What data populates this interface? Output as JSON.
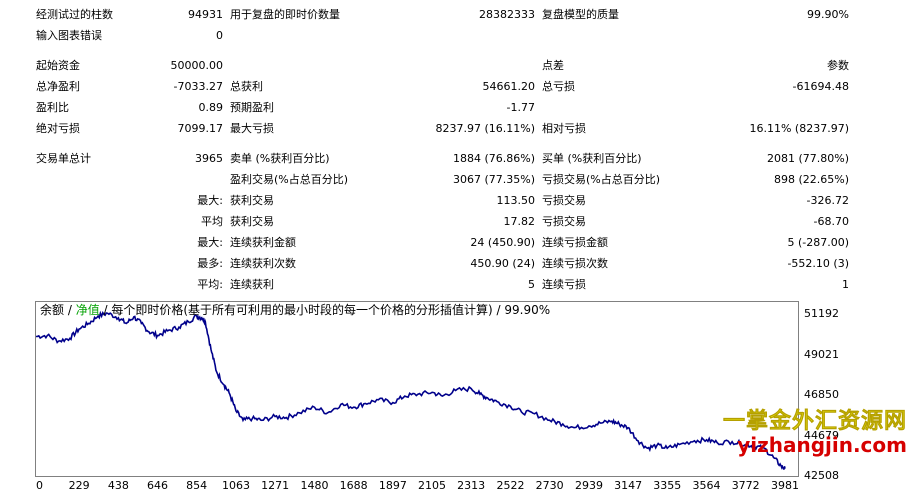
{
  "summary": {
    "bars_tested_label": "经测试过的柱数",
    "bars_tested_value": "94931",
    "ticks_label": "用于复盘的即时价数量",
    "ticks_value": "28382333",
    "model_quality_label": "复盘模型的质量",
    "model_quality_value": "99.90%",
    "mismatch_label": "输入图表错误",
    "mismatch_value": "0",
    "initial_deposit_label": "起始资金",
    "initial_deposit_value": "50000.00",
    "spread_label": "点差",
    "spread_value": "参数",
    "net_profit_label": "总净盈利",
    "net_profit_value": "-7033.27",
    "gross_profit_label": "总获利",
    "gross_profit_value": "54661.20",
    "gross_loss_label": "总亏损",
    "gross_loss_value": "-61694.48",
    "profit_factor_label": "盈利比",
    "profit_factor_value": "0.89",
    "expected_payoff_label": "预期盈利",
    "expected_payoff_value": "-1.77",
    "absolute_dd_label": "绝对亏损",
    "absolute_dd_value": "7099.17",
    "maximal_dd_label": "最大亏损",
    "maximal_dd_value": "8237.97 (16.11%)",
    "relative_dd_label": "相对亏损",
    "relative_dd_value": "16.11% (8237.97)",
    "total_trades_label": "交易单总计",
    "total_trades_value": "3965",
    "short_label": "卖单 (%获利百分比)",
    "short_value": "1884 (76.86%)",
    "long_label": "买单 (%获利百分比)",
    "long_value": "2081 (77.80%)",
    "profit_trades_label": "盈利交易(%占总百分比)",
    "profit_trades_value": "3067 (77.35%)",
    "loss_trades_label": "亏损交易(%占总百分比)",
    "loss_trades_value": "898 (22.65%)",
    "largest_prefix": "最大:",
    "largest_profit_label": "获利交易",
    "largest_profit_value": "113.50",
    "largest_loss_label": "亏损交易",
    "largest_loss_value": "-326.72",
    "average_prefix": "平均",
    "average_profit_label": "获利交易",
    "average_profit_value": "17.82",
    "average_loss_label": "亏损交易",
    "average_loss_value": "-68.70",
    "max_consec_prefix": "最大:",
    "max_consec_wins_label": "连续获利金额",
    "max_consec_wins_value": "24 (450.90)",
    "max_consec_losses_label": "连续亏损金额",
    "max_consec_losses_value": "5 (-287.00)",
    "maximal_consec_prefix": "最多:",
    "maximal_consec_profit_label": "连续获利次数",
    "maximal_consec_profit_value": "450.90 (24)",
    "maximal_consec_loss_label": "连续亏损次数",
    "maximal_consec_loss_value": "-552.10 (3)",
    "avg_consec_prefix": "平均:",
    "avg_consec_wins_label": "连续获利",
    "avg_consec_wins_value": "5",
    "avg_consec_losses_label": "连续亏损",
    "avg_consec_losses_value": "1"
  },
  "legend": {
    "balance": "余额",
    "sep1": " / ",
    "equity": "净值",
    "sep2": " / ",
    "description": "每个即时价格(基于所有可利用的最小时段的每一个价格的分形插值计算) / 99.90%"
  },
  "watermark": {
    "line1": "一掌金外汇资源网",
    "line2": "yizhangjin.com"
  },
  "colors": {
    "balance_line": "#00008b",
    "equity_text": "#00a000",
    "watermark_yellow": "#f2ef13",
    "watermark_red": "#d60000"
  },
  "chart_data": {
    "type": "line",
    "y_ticks": [
      "51192",
      "49021",
      "46850",
      "44679",
      "42508"
    ],
    "x_ticks": [
      "0",
      "229",
      "438",
      "646",
      "854",
      "1063",
      "1271",
      "1480",
      "1688",
      "1897",
      "2105",
      "2313",
      "2522",
      "2730",
      "2939",
      "3147",
      "3355",
      "3564",
      "3772",
      "3981"
    ],
    "xlim": [
      0,
      4050
    ],
    "ylim": [
      42508,
      51850
    ],
    "series": [
      {
        "points": [
          [
            0,
            50000
          ],
          [
            60,
            50050
          ],
          [
            120,
            49750
          ],
          [
            180,
            49900
          ],
          [
            229,
            50400
          ],
          [
            280,
            50700
          ],
          [
            330,
            51100
          ],
          [
            380,
            51250
          ],
          [
            438,
            51000
          ],
          [
            480,
            50700
          ],
          [
            520,
            51050
          ],
          [
            560,
            50700
          ],
          [
            600,
            50250
          ],
          [
            646,
            50050
          ],
          [
            700,
            50300
          ],
          [
            760,
            50500
          ],
          [
            810,
            50800
          ],
          [
            854,
            51100
          ],
          [
            880,
            51000
          ],
          [
            900,
            50800
          ],
          [
            930,
            49300
          ],
          [
            960,
            48100
          ],
          [
            1000,
            47400
          ],
          [
            1030,
            46900
          ],
          [
            1063,
            46000
          ],
          [
            1100,
            45500
          ],
          [
            1150,
            45600
          ],
          [
            1200,
            45500
          ],
          [
            1271,
            45700
          ],
          [
            1330,
            45650
          ],
          [
            1400,
            45900
          ],
          [
            1480,
            46200
          ],
          [
            1550,
            45900
          ],
          [
            1620,
            46350
          ],
          [
            1688,
            46200
          ],
          [
            1750,
            46400
          ],
          [
            1820,
            46600
          ],
          [
            1897,
            46450
          ],
          [
            1960,
            46800
          ],
          [
            2030,
            46900
          ],
          [
            2105,
            47000
          ],
          [
            2160,
            46800
          ],
          [
            2230,
            47100
          ],
          [
            2313,
            47200
          ],
          [
            2360,
            46900
          ],
          [
            2400,
            46700
          ],
          [
            2450,
            46500
          ],
          [
            2522,
            46250
          ],
          [
            2580,
            45950
          ],
          [
            2650,
            45850
          ],
          [
            2730,
            45500
          ],
          [
            2800,
            45300
          ],
          [
            2860,
            45100
          ],
          [
            2939,
            45200
          ],
          [
            3000,
            45350
          ],
          [
            3060,
            45450
          ],
          [
            3100,
            45300
          ],
          [
            3147,
            45100
          ],
          [
            3200,
            44400
          ],
          [
            3250,
            44000
          ],
          [
            3300,
            44150
          ],
          [
            3355,
            44000
          ],
          [
            3420,
            44200
          ],
          [
            3500,
            44400
          ],
          [
            3564,
            44450
          ],
          [
            3620,
            44300
          ],
          [
            3700,
            44350
          ],
          [
            3772,
            44200
          ],
          [
            3820,
            44100
          ],
          [
            3870,
            44000
          ],
          [
            3920,
            43500
          ],
          [
            3960,
            43050
          ],
          [
            3981,
            42900
          ]
        ]
      }
    ]
  }
}
